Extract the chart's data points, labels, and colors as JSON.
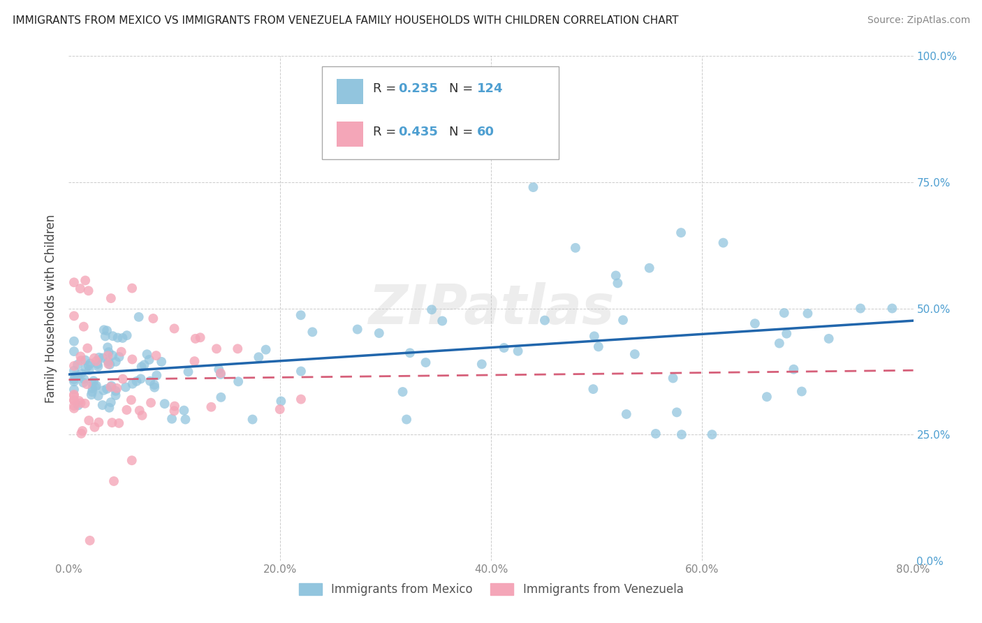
{
  "title": "IMMIGRANTS FROM MEXICO VS IMMIGRANTS FROM VENEZUELA FAMILY HOUSEHOLDS WITH CHILDREN CORRELATION CHART",
  "source": "Source: ZipAtlas.com",
  "ylabel": "Family Households with Children",
  "legend_mexico": "Immigrants from Mexico",
  "legend_venezuela": "Immigrants from Venezuela",
  "mexico_R": 0.235,
  "mexico_N": 124,
  "venezuela_R": 0.435,
  "venezuela_N": 60,
  "xlim": [
    0.0,
    0.8
  ],
  "ylim": [
    0.0,
    1.0
  ],
  "xticks": [
    0.0,
    0.2,
    0.4,
    0.6,
    0.8
  ],
  "yticks": [
    0.0,
    0.25,
    0.5,
    0.75,
    1.0
  ],
  "xtick_labels": [
    "0.0%",
    "20.0%",
    "40.0%",
    "60.0%",
    "80.0%"
  ],
  "ytick_labels": [
    "0.0%",
    "25.0%",
    "50.0%",
    "75.0%",
    "100.0%"
  ],
  "mexico_color": "#92c5de",
  "venezuela_color": "#f4a6b8",
  "mexico_line_color": "#2166ac",
  "venezuela_line_color": "#d6607a",
  "watermark": "ZIPatlas",
  "background_color": "#ffffff",
  "tick_color_x": "#888888",
  "tick_color_y": "#4e9fd1"
}
